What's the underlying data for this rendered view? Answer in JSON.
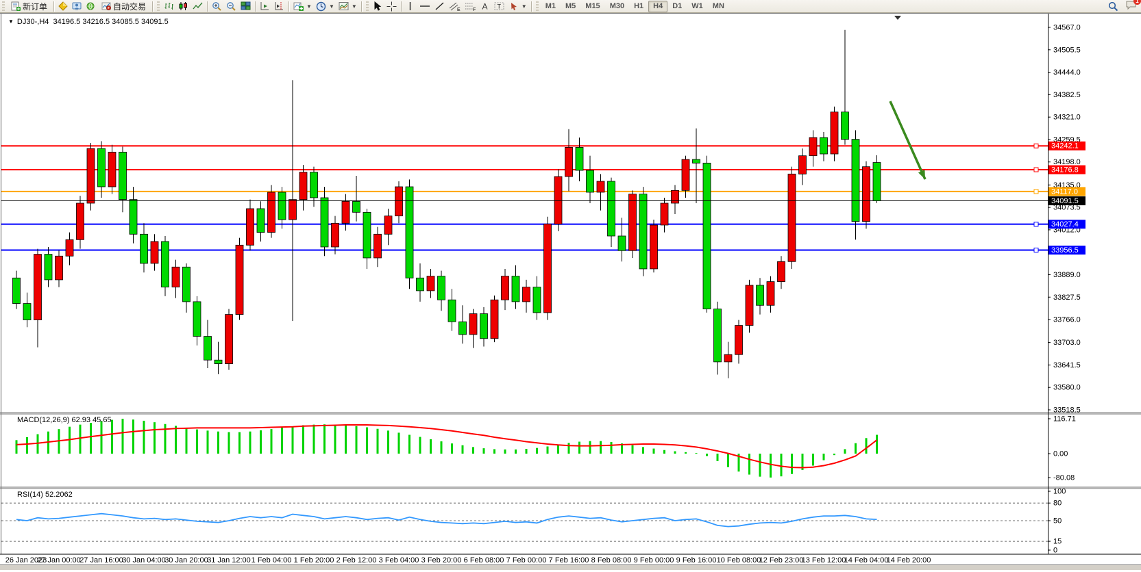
{
  "toolbar": {
    "new_order_label": "新订单",
    "autotrade_label": "自动交易",
    "timeframes": [
      "M1",
      "M5",
      "M15",
      "M30",
      "H1",
      "H4",
      "D1",
      "W1",
      "MN"
    ],
    "active_timeframe": "H4",
    "notification_count": "1"
  },
  "chart": {
    "symbol_period": "DJ30-,H4",
    "ohlc_line": "34196.5 34216.5 34085.5 34091.5",
    "macd_name": "MACD(12,26,9)",
    "macd_values": "62.93 45.65",
    "rsi_name": "RSI(14)",
    "rsi_value": "52.2062"
  },
  "chart_data": [
    {
      "type": "candlestick",
      "title": "DJ30-,H4",
      "current_bar": {
        "open": 34196.5,
        "high": 34216.5,
        "low": 34085.5,
        "close": 34091.5
      },
      "up_color": "#ee0000",
      "down_color": "#00d900",
      "wick_color": "#000000",
      "y_axis_ticks": [
        34567.0,
        34505.5,
        34444.0,
        34382.5,
        34321.0,
        34259.5,
        34198.0,
        34135.0,
        34073.5,
        34012.0,
        33950.5,
        33889.0,
        33827.5,
        33766.0,
        33703.0,
        33641.5,
        33580.0,
        33518.5
      ],
      "x_labels": [
        "26 Jan 2023",
        "27 Jan 00:00",
        "27 Jan 16:00",
        "30 Jan 04:00",
        "30 Jan 20:00",
        "31 Jan 12:00",
        "1 Feb 04:00",
        "1 Feb 20:00",
        "2 Feb 12:00",
        "3 Feb 04:00",
        "3 Feb 20:00",
        "6 Feb 08:00",
        "7 Feb 00:00",
        "7 Feb 16:00",
        "8 Feb 08:00",
        "9 Feb 00:00",
        "9 Feb 16:00",
        "10 Feb 08:00",
        "12 Feb 23:00",
        "13 Feb 12:00",
        "14 Feb 04:00",
        "14 Feb 20:00"
      ],
      "bars_per_label": 4,
      "candles": [
        [
          33880,
          33900,
          33795,
          33810
        ],
        [
          33810,
          33840,
          33745,
          33765
        ],
        [
          33765,
          33960,
          33690,
          33945
        ],
        [
          33945,
          33965,
          33855,
          33875
        ],
        [
          33875,
          33955,
          33855,
          33940
        ],
        [
          33940,
          34005,
          33915,
          33985
        ],
        [
          33985,
          34105,
          33960,
          34085
        ],
        [
          34085,
          34250,
          34065,
          34235
        ],
        [
          34235,
          34255,
          34100,
          34130
        ],
        [
          34130,
          34245,
          34110,
          34225
        ],
        [
          34225,
          34240,
          34060,
          34095
        ],
        [
          34095,
          34130,
          33975,
          34000
        ],
        [
          34000,
          34030,
          33895,
          33920
        ],
        [
          33920,
          34000,
          33900,
          33980
        ],
        [
          33980,
          33995,
          33830,
          33855
        ],
        [
          33855,
          33930,
          33825,
          33910
        ],
        [
          33910,
          33920,
          33785,
          33815
        ],
        [
          33815,
          33830,
          33695,
          33720
        ],
        [
          33720,
          33765,
          33633,
          33655
        ],
        [
          33655,
          33705,
          33616,
          33645
        ],
        [
          33645,
          33795,
          33628,
          33780
        ],
        [
          33780,
          33990,
          33765,
          33970
        ],
        [
          33970,
          34095,
          33955,
          34070
        ],
        [
          34070,
          34090,
          33980,
          34005
        ],
        [
          34005,
          34135,
          33990,
          34115
        ],
        [
          34115,
          34130,
          34015,
          34040
        ],
        [
          34040,
          34422,
          33762,
          34095
        ],
        [
          34095,
          34190,
          34065,
          34170
        ],
        [
          34170,
          34185,
          34075,
          34100
        ],
        [
          34100,
          34130,
          33940,
          33965
        ],
        [
          33965,
          34050,
          33945,
          34030
        ],
        [
          34030,
          34110,
          34010,
          34090
        ],
        [
          34090,
          34160,
          34035,
          34060
        ],
        [
          34060,
          34070,
          33905,
          33935
        ],
        [
          33935,
          34020,
          33910,
          34000
        ],
        [
          34000,
          34070,
          33970,
          34050
        ],
        [
          34050,
          34145,
          34030,
          34130
        ],
        [
          34130,
          34150,
          33850,
          33880
        ],
        [
          33880,
          33920,
          33815,
          33845
        ],
        [
          33845,
          33905,
          33825,
          33885
        ],
        [
          33885,
          33900,
          33790,
          33820
        ],
        [
          33820,
          33850,
          33735,
          33760
        ],
        [
          33760,
          33805,
          33700,
          33725
        ],
        [
          33725,
          33795,
          33688,
          33782
        ],
        [
          33782,
          33800,
          33692,
          33714
        ],
        [
          33714,
          33832,
          33704,
          33820
        ],
        [
          33820,
          33905,
          33792,
          33885
        ],
        [
          33885,
          33915,
          33795,
          33815
        ],
        [
          33815,
          33875,
          33785,
          33855
        ],
        [
          33855,
          33885,
          33765,
          33785
        ],
        [
          33785,
          34048,
          33765,
          34028
        ],
        [
          34028,
          34178,
          34008,
          34158
        ],
        [
          34158,
          34288,
          34118,
          34238
        ],
        [
          34238,
          34265,
          34145,
          34175
        ],
        [
          34175,
          34215,
          34085,
          34115
        ],
        [
          34115,
          34165,
          34065,
          34145
        ],
        [
          34145,
          34155,
          33965,
          33995
        ],
        [
          33995,
          34045,
          33925,
          33955
        ],
        [
          33955,
          34120,
          33935,
          34110
        ],
        [
          34110,
          34130,
          33885,
          33905
        ],
        [
          33905,
          34040,
          33895,
          34025
        ],
        [
          34025,
          34100,
          34005,
          34085
        ],
        [
          34085,
          34135,
          34055,
          34120
        ],
        [
          34120,
          34215,
          34100,
          34205
        ],
        [
          34205,
          34290,
          34085,
          34195
        ],
        [
          34195,
          34215,
          33785,
          33795
        ],
        [
          33795,
          33815,
          33615,
          33650
        ],
        [
          33650,
          33705,
          33605,
          33670
        ],
        [
          33670,
          33765,
          33645,
          33750
        ],
        [
          33750,
          33875,
          33730,
          33860
        ],
        [
          33860,
          33880,
          33780,
          33805
        ],
        [
          33805,
          33885,
          33785,
          33870
        ],
        [
          33870,
          33940,
          33850,
          33925
        ],
        [
          33925,
          34185,
          33905,
          34165
        ],
        [
          34165,
          34235,
          34135,
          34215
        ],
        [
          34215,
          34285,
          34185,
          34265
        ],
        [
          34265,
          34280,
          34200,
          34220
        ],
        [
          34220,
          34350,
          34200,
          34335
        ],
        [
          34335,
          34560,
          34245,
          34260
        ],
        [
          34260,
          34285,
          33985,
          34035
        ],
        [
          34035,
          34200,
          34015,
          34185
        ],
        [
          34196.5,
          34216.5,
          34085.5,
          34091.5
        ]
      ],
      "hlines": [
        {
          "price": 34242.1,
          "label": "34242.1",
          "color": "#ff0000"
        },
        {
          "price": 34176.8,
          "label": "34176.8",
          "color": "#ff0000"
        },
        {
          "price": 34117.0,
          "label": "34117.0",
          "color": "#ffa500"
        },
        {
          "price": 34027.4,
          "label": "34027.4",
          "color": "#0000ff"
        },
        {
          "price": 33956.5,
          "label": "33956.5",
          "color": "#0000ff"
        }
      ],
      "current_price": {
        "value": 34091.5,
        "label": "34091.5",
        "color": "#000000"
      },
      "annotation_arrow": {
        "from": [
          1299,
          148
        ],
        "to": [
          1350,
          262
        ],
        "color": "#3a8a1e"
      }
    },
    {
      "type": "bar",
      "title": "MACD(12,26,9)",
      "y_ticks": [
        "116.71",
        "0.00",
        "-80.08"
      ],
      "y_tick_values": [
        116.71,
        0,
        -80.08
      ],
      "histogram_color": "#00d300",
      "signal_color": "#ff0000",
      "histogram": [
        45,
        55,
        65,
        74,
        82,
        90,
        97,
        103,
        109,
        113,
        116.7,
        114,
        110,
        105,
        99,
        93,
        87,
        81,
        77,
        74,
        72,
        72,
        74,
        78,
        82,
        87,
        91,
        95,
        97,
        98,
        97,
        95,
        92,
        88,
        83,
        77,
        70,
        63,
        56,
        48,
        41,
        34,
        28,
        22,
        18,
        15,
        14,
        14,
        16,
        19,
        24,
        30,
        36,
        40,
        42,
        42,
        39,
        34,
        28,
        22,
        17,
        12,
        8,
        5,
        2,
        -8,
        -25,
        -45,
        -60,
        -70,
        -77,
        -80,
        -76,
        -68,
        -55,
        -40,
        -22,
        -5,
        15,
        35,
        52,
        62.93
      ],
      "signal": [
        30,
        32,
        35,
        39,
        43,
        47,
        52,
        57,
        61,
        66,
        70,
        74,
        77,
        80,
        82,
        84,
        85,
        86,
        86,
        86,
        86,
        86,
        86,
        87,
        88,
        89,
        90,
        92,
        93,
        94,
        95,
        96,
        96,
        96,
        95,
        94,
        92,
        90,
        87,
        84,
        80,
        76,
        71,
        66,
        61,
        55,
        50,
        45,
        40,
        36,
        32,
        29,
        27,
        26,
        26,
        27,
        28,
        30,
        31,
        32,
        32,
        31,
        29,
        26,
        22,
        16,
        9,
        1,
        -9,
        -19,
        -28,
        -36,
        -42,
        -46,
        -47,
        -45,
        -40,
        -32,
        -21,
        -8,
        18,
        45.65
      ]
    },
    {
      "type": "line",
      "title": "RSI(14)",
      "y_ticks": [
        "100",
        "80",
        "50",
        "15",
        "0"
      ],
      "y_tick_values": [
        100,
        80,
        50,
        15,
        0
      ],
      "levels": [
        80,
        50,
        15
      ],
      "line_color": "#3399ff",
      "values": [
        52,
        50,
        55,
        53,
        54,
        56,
        58,
        60,
        62,
        60,
        58,
        55,
        53,
        54,
        52,
        53,
        51,
        49,
        48,
        47,
        50,
        54,
        57,
        55,
        57,
        55,
        61,
        59,
        57,
        53,
        55,
        57,
        55,
        52,
        54,
        55,
        51,
        56,
        52,
        49,
        47,
        46,
        45,
        46,
        45,
        47,
        49,
        47,
        48,
        46,
        52,
        56,
        58,
        56,
        54,
        55,
        51,
        48,
        50,
        52,
        54,
        55,
        50,
        52,
        53,
        48,
        42,
        40,
        41,
        44,
        46,
        47,
        46,
        49,
        53,
        56,
        58,
        58,
        59,
        57,
        53,
        52.2
      ]
    }
  ]
}
